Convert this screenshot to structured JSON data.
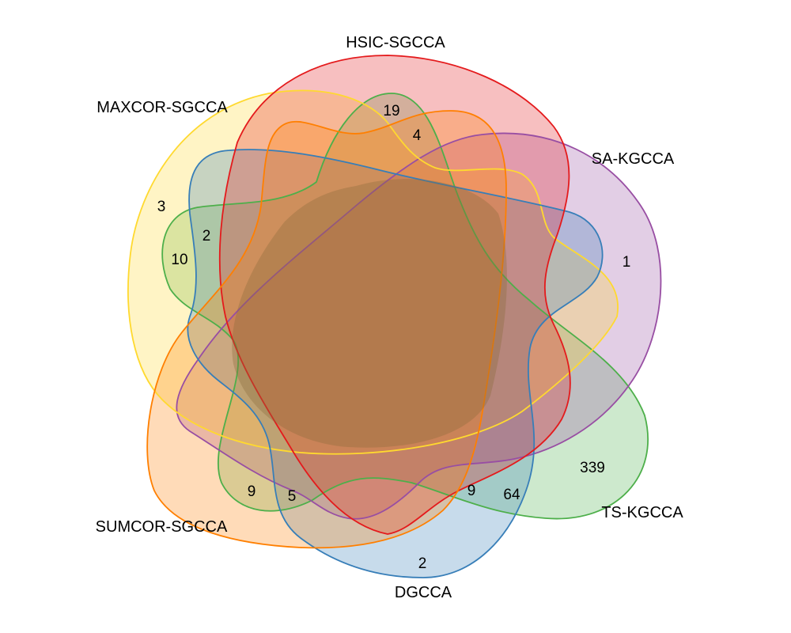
{
  "sets": [
    {
      "key": "hsic",
      "label": "HSIC-SGCCA",
      "color": "#e41a1c"
    },
    {
      "key": "maxcor",
      "label": "MAXCOR-SGCCA",
      "color": "#ffd92f"
    },
    {
      "key": "sakgcca",
      "label": "SA-KGCCA",
      "color": "#984ea3"
    },
    {
      "key": "tskgcca",
      "label": "TS-KGCCA",
      "color": "#4daf4a"
    },
    {
      "key": "dgcca",
      "label": "DGCCA",
      "color": "#377eb8"
    },
    {
      "key": "sumcor",
      "label": "SUMCOR-SGCCA",
      "color": "#ff7f00"
    }
  ],
  "regions": [
    {
      "value": "19"
    },
    {
      "value": "4"
    },
    {
      "value": "3"
    },
    {
      "value": "2"
    },
    {
      "value": "10"
    },
    {
      "value": "1"
    },
    {
      "value": "339"
    },
    {
      "value": "64"
    },
    {
      "value": "9"
    },
    {
      "value": "2"
    },
    {
      "value": "5"
    },
    {
      "value": "9"
    }
  ]
}
